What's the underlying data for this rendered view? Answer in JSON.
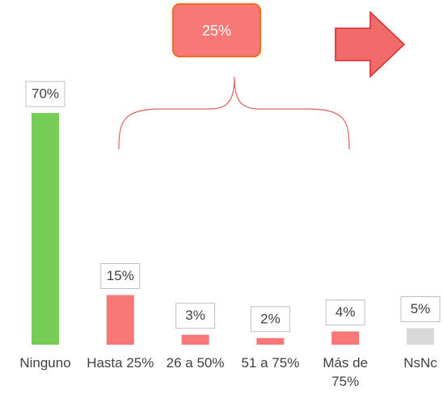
{
  "chart_data": {
    "type": "bar",
    "categories": [
      "Ninguno",
      "Hasta 25%",
      "26 a 50%",
      "51 a 75%",
      "Más de 75%",
      "NsNc"
    ],
    "values": [
      70,
      15,
      3,
      2,
      4,
      5
    ],
    "value_labels": [
      "70%",
      "15%",
      "3%",
      "2%",
      "4%",
      "5%"
    ],
    "colors": [
      "#77cc55",
      "#f87878",
      "#f87878",
      "#f87878",
      "#f87878",
      "#d9d9d9"
    ],
    "annotation": "25%"
  }
}
